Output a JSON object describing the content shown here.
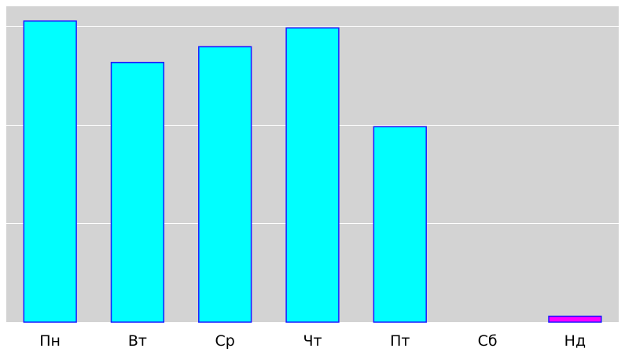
{
  "chart_data": {
    "type": "bar",
    "categories": [
      "Пн",
      "Вт",
      "Ср",
      "Чт",
      "Пт",
      "Сб",
      "Нд"
    ],
    "values": [
      3.05,
      2.63,
      2.79,
      2.98,
      1.98,
      0,
      0.06
    ],
    "ylim": [
      0,
      3.2
    ],
    "grid": true,
    "legend": "none",
    "bar_colors": [
      "#00ffff",
      "#00ffff",
      "#00ffff",
      "#00ffff",
      "#00ffff",
      "#00ffff",
      "#ff00ff"
    ],
    "bar_edge_color": "#1a1aff",
    "plot_background": "#d3d3d3",
    "grid_color": "#ffffff"
  }
}
